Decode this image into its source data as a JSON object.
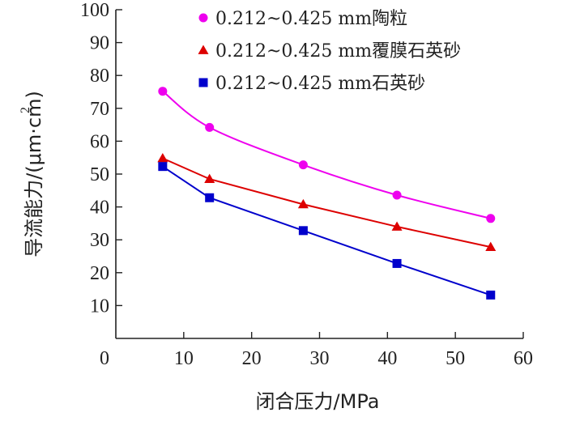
{
  "chart_data": {
    "type": "line",
    "xlabel": "闭合压力/MPa",
    "ylabel": "导流能力/(μm·cm)",
    "ylabel_superscript": "2",
    "xlim": [
      0,
      60
    ],
    "ylim": [
      0,
      100
    ],
    "x_ticks": [
      0,
      10,
      20,
      30,
      40,
      50,
      60
    ],
    "y_ticks": [
      10,
      20,
      30,
      40,
      50,
      60,
      70,
      80,
      90,
      100
    ],
    "grid": false,
    "legend_position": "top-right",
    "series": [
      {
        "name": "0.212~0.425 mm陶粒",
        "color": "#ee00ee",
        "marker": "circle",
        "x": [
          6.9,
          13.8,
          27.6,
          41.4,
          55.2
        ],
        "y": [
          75.2,
          64.2,
          52.8,
          43.6,
          36.5
        ]
      },
      {
        "name": "0.212~0.425 mm覆膜石英砂",
        "color": "#dd0000",
        "marker": "triangle",
        "x": [
          6.9,
          13.8,
          27.6,
          41.4,
          55.2
        ],
        "y": [
          54.8,
          48.5,
          40.8,
          34.0,
          27.8
        ]
      },
      {
        "name": "0.212~0.425 mm石英砂",
        "color": "#0000cc",
        "marker": "square",
        "x": [
          6.9,
          13.8,
          27.6,
          41.4,
          55.2
        ],
        "y": [
          52.3,
          42.8,
          32.8,
          22.8,
          13.2
        ]
      }
    ]
  }
}
